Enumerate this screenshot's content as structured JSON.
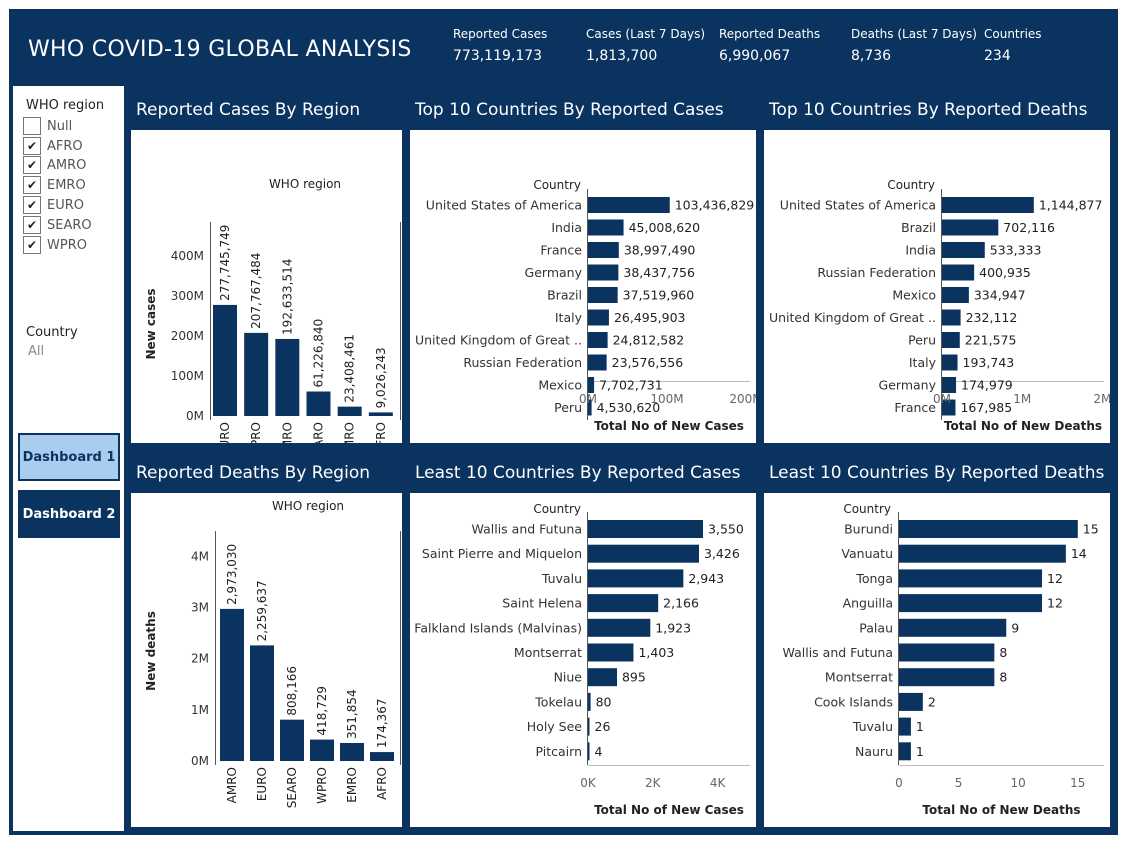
{
  "header": {
    "title": "WHO COVID-19 GLOBAL ANALYSIS",
    "kpis": [
      {
        "label": "Reported Cases",
        "value": "773,119,173"
      },
      {
        "label": "Cases (Last 7 Days)",
        "value": "1,813,700"
      },
      {
        "label": "Reported Deaths",
        "value": "6,990,067"
      },
      {
        "label": "Deaths (Last 7 Days)",
        "value": "8,736"
      },
      {
        "label": "Countries",
        "value": "234"
      }
    ]
  },
  "sidebar": {
    "region_filter": {
      "title": "WHO region",
      "items": [
        {
          "label": "Null",
          "checked": false
        },
        {
          "label": "AFRO",
          "checked": true
        },
        {
          "label": "AMRO",
          "checked": true
        },
        {
          "label": "EMRO",
          "checked": true
        },
        {
          "label": "EURO",
          "checked": true
        },
        {
          "label": "SEARO",
          "checked": true
        },
        {
          "label": "WPRO",
          "checked": true
        }
      ]
    },
    "country_filter": {
      "title": "Country",
      "value": "All"
    },
    "check_mark": "✔",
    "buttons": [
      {
        "label": "Dashboard 1",
        "active": true
      },
      {
        "label": "Dashboard 2",
        "active": false
      }
    ]
  },
  "colors": {
    "navy": "#0b3360",
    "bar": "#0b3360",
    "active_button": "#a9cdee"
  },
  "chart_data": [
    {
      "id": "cases_region",
      "type": "bar",
      "title": "Reported Cases By Region",
      "legend_title": "WHO region",
      "xlabel": "",
      "ylabel": "New cases",
      "categories": [
        "EURO",
        "WPRO",
        "AMRO",
        "SEARO",
        "EMRO",
        "AFRO"
      ],
      "values": [
        277745749,
        207767484,
        192633514,
        61226840,
        23408461,
        9026243
      ],
      "labels": [
        "277,745,749",
        "207,767,484",
        "192,633,514",
        "61,226,840",
        "23,408,461",
        "9,026,243"
      ],
      "ylim": [
        0,
        460000000
      ],
      "yticks": [
        0,
        100000000,
        200000000,
        300000000,
        400000000
      ],
      "ytick_labels": [
        "0M",
        "100M",
        "200M",
        "300M",
        "400M"
      ],
      "grid": false
    },
    {
      "id": "deaths_region",
      "type": "bar",
      "title": "Reported Deaths By Region",
      "legend_title": "WHO region",
      "xlabel": "",
      "ylabel": "New deaths",
      "categories": [
        "AMRO",
        "EURO",
        "SEARO",
        "WPRO",
        "EMRO",
        "AFRO"
      ],
      "values": [
        2973030,
        2259637,
        808166,
        418729,
        351854,
        174367
      ],
      "labels": [
        "2,973,030",
        "2,259,637",
        "808,166",
        "418,729",
        "351,854",
        "174,367"
      ],
      "ylim": [
        0,
        4300000
      ],
      "yticks": [
        0,
        1000000,
        2000000,
        3000000,
        4000000
      ],
      "ytick_labels": [
        "0M",
        "1M",
        "2M",
        "3M",
        "4M"
      ],
      "grid": false
    },
    {
      "id": "top_cases",
      "type": "bar",
      "orientation": "horizontal",
      "title": "Top 10 Countries By Reported Cases",
      "category_header": "Country",
      "xlabel": "Total No of New Cases",
      "categories": [
        "United States of America",
        "India",
        "France",
        "Germany",
        "Brazil",
        "Italy",
        "United Kingdom of Great ..",
        "Russian Federation",
        "Mexico",
        "Peru"
      ],
      "values": [
        103436829,
        45008620,
        38997490,
        38437756,
        37519960,
        26495903,
        24812582,
        23576556,
        7702731,
        4530620
      ],
      "labels": [
        "103,436,829",
        "45,008,620",
        "38,997,490",
        "38,437,756",
        "37,519,960",
        "26,495,903",
        "24,812,582",
        "23,576,556",
        "7,702,731",
        "4,530,620"
      ],
      "xlim": [
        0,
        205000000
      ],
      "xticks": [
        0,
        100000000,
        200000000
      ],
      "xtick_labels": [
        "0M",
        "100M",
        "200M"
      ],
      "grid": false
    },
    {
      "id": "top_deaths",
      "type": "bar",
      "orientation": "horizontal",
      "title": "Top 10 Countries By Reported Deaths",
      "category_header": "Country",
      "xlabel": "Total No of New Deaths",
      "categories": [
        "United States of America",
        "Brazil",
        "India",
        "Russian Federation",
        "Mexico",
        "United Kingdom of Great ..",
        "Peru",
        "Italy",
        "Germany",
        "France"
      ],
      "values": [
        1144877,
        702116,
        533333,
        400935,
        334947,
        232112,
        221575,
        193743,
        174979,
        167985
      ],
      "labels": [
        "1,144,877",
        "702,116",
        "533,333",
        "400,935",
        "334,947",
        "232,112",
        "221,575",
        "193,743",
        "174,979",
        "167,985"
      ],
      "xlim": [
        0,
        2020000
      ],
      "xticks": [
        0,
        1000000,
        2000000
      ],
      "xtick_labels": [
        "0M",
        "1M",
        "2M"
      ],
      "grid": false
    },
    {
      "id": "least_cases",
      "type": "bar",
      "orientation": "horizontal",
      "title": "Least 10 Countries By Reported Cases",
      "category_header": "Country",
      "xlabel": "Total No of New Cases",
      "categories": [
        "Wallis and Futuna",
        "Saint Pierre and Miquelon",
        "Tuvalu",
        "Saint Helena",
        "Falkland Islands (Malvinas)",
        "Montserrat",
        "Niue",
        "Tokelau",
        "Holy See",
        "Pitcairn"
      ],
      "values": [
        3550,
        3426,
        2943,
        2166,
        1923,
        1403,
        895,
        80,
        26,
        4
      ],
      "labels": [
        "3,550",
        "3,426",
        "2,943",
        "2,166",
        "1,923",
        "1,403",
        "895",
        "80",
        "26",
        "4"
      ],
      "xlim": [
        0,
        5000
      ],
      "xticks": [
        0,
        2000,
        4000
      ],
      "xtick_labels": [
        "0K",
        "2K",
        "4K"
      ],
      "grid": false
    },
    {
      "id": "least_deaths",
      "type": "bar",
      "orientation": "horizontal",
      "title": "Least 10 Countries By Reported Deaths",
      "category_header": "Country",
      "xlabel": "Total No of New Deaths",
      "categories": [
        "Burundi",
        "Vanuatu",
        "Tonga",
        "Anguilla",
        "Palau",
        "Wallis and Futuna",
        "Montserrat",
        "Cook Islands",
        "Tuvalu",
        "Nauru"
      ],
      "values": [
        15,
        14,
        12,
        12,
        9,
        8,
        8,
        2,
        1,
        1
      ],
      "labels": [
        "15",
        "14",
        "12",
        "12",
        "9",
        "8",
        "8",
        "2",
        "1",
        "1"
      ],
      "xlim": [
        0,
        17.2
      ],
      "xticks": [
        0,
        5,
        10,
        15
      ],
      "xtick_labels": [
        "0",
        "5",
        "10",
        "15"
      ],
      "grid": false
    }
  ]
}
